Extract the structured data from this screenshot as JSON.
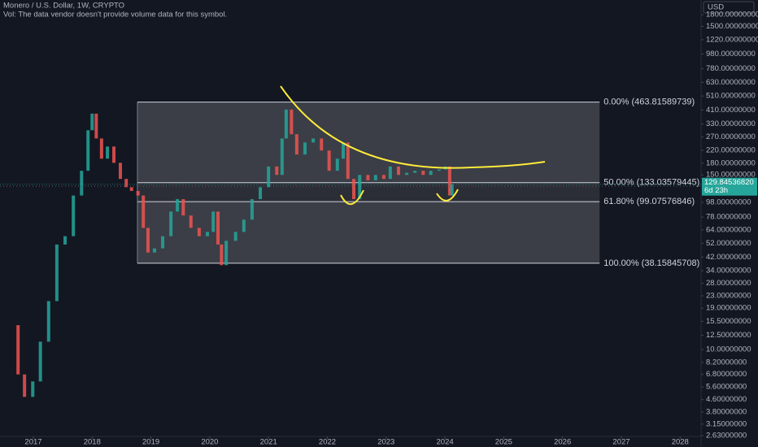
{
  "chart_data": {
    "type": "candlestick",
    "title": "Monero / U.S. Dollar, 1W, CRYPTO",
    "subtitle": "Vol: The data vendor doesn't provide volume data for this symbol.",
    "currency": "USD",
    "log_scale": true,
    "up_color": "#26a69a",
    "down_color": "#ef5350",
    "x": [
      2016.64,
      2016.74,
      2016.85,
      2016.99,
      2017.12,
      2017.26,
      2017.4,
      2017.54,
      2017.68,
      2017.82,
      2017.93,
      2018.0,
      2018.07,
      2018.16,
      2018.26,
      2018.37,
      2018.48,
      2018.58,
      2018.67,
      2018.78,
      2018.87,
      2018.95,
      2019.06,
      2019.2,
      2019.34,
      2019.45,
      2019.55,
      2019.68,
      2019.82,
      2019.96,
      2020.06,
      2020.14,
      2020.2,
      2020.28,
      2020.44,
      2020.58,
      2020.72,
      2020.86,
      2021.0,
      2021.14,
      2021.23,
      2021.3,
      2021.39,
      2021.48,
      2021.62,
      2021.76,
      2021.9,
      2022.03,
      2022.17,
      2022.27,
      2022.35,
      2022.45,
      2022.55,
      2022.69,
      2022.82,
      2022.96,
      2023.07,
      2023.21,
      2023.35,
      2023.49,
      2023.63,
      2023.76,
      2023.9,
      2024.01,
      2024.08,
      2024.12
    ],
    "values": [
      14.6,
      6.8,
      4.8,
      6.1,
      11.3,
      21.2,
      51,
      58,
      109,
      160,
      300,
      388,
      264,
      193,
      233,
      181,
      141,
      124,
      117,
      109,
      66,
      45,
      48,
      58,
      85,
      103,
      80,
      66,
      58,
      62,
      85,
      51,
      37,
      54,
      62,
      75,
      103,
      124,
      171,
      150,
      264,
      413,
      282,
      206,
      248,
      264,
      219,
      160,
      193,
      248,
      141,
      103,
      150,
      138,
      150,
      141,
      171,
      150,
      155,
      160,
      150,
      160,
      163,
      171,
      109,
      129.8
    ],
    "last_price": {
      "value": 129.8453682,
      "label": "129.84536820"
    },
    "countdown": "6d 23h",
    "xlim": [
      2016.433,
      2028.356
    ],
    "xticks": [
      2017,
      2018,
      2019,
      2020,
      2021,
      2022,
      2023,
      2024,
      2025,
      2026,
      2027,
      2028
    ],
    "ylim": [
      2.6,
      2260
    ],
    "yticks": [
      {
        "value": 1800,
        "label": "1800.00000000"
      },
      {
        "value": 1500,
        "label": "1500.00000000"
      },
      {
        "value": 1220,
        "label": "1220.00000000"
      },
      {
        "value": 980,
        "label": "980.00000000"
      },
      {
        "value": 780,
        "label": "780.00000000"
      },
      {
        "value": 630,
        "label": "630.00000000"
      },
      {
        "value": 510,
        "label": "510.00000000"
      },
      {
        "value": 410,
        "label": "410.00000000"
      },
      {
        "value": 330,
        "label": "330.00000000"
      },
      {
        "value": 270,
        "label": "270.00000000"
      },
      {
        "value": 220,
        "label": "220.00000000"
      },
      {
        "value": 180,
        "label": "180.00000000"
      },
      {
        "value": 150,
        "label": "150.00000000"
      },
      {
        "value": 98,
        "label": "98.00000000"
      },
      {
        "value": 78,
        "label": "78.00000000"
      },
      {
        "value": 64,
        "label": "64.00000000"
      },
      {
        "value": 52,
        "label": "52.00000000"
      },
      {
        "value": 42,
        "label": "42.00000000"
      },
      {
        "value": 34,
        "label": "34.00000000"
      },
      {
        "value": 28,
        "label": "28.00000000"
      },
      {
        "value": 23,
        "label": "23.00000000"
      },
      {
        "value": 19,
        "label": "19.00000000"
      },
      {
        "value": 15.5,
        "label": "15.50000000"
      },
      {
        "value": 12.5,
        "label": "12.50000000"
      },
      {
        "value": 10,
        "label": "10.00000000"
      },
      {
        "value": 8.2,
        "label": "8.20000000"
      },
      {
        "value": 6.8,
        "label": "6.80000000"
      },
      {
        "value": 5.6,
        "label": "5.60000000"
      },
      {
        "value": 4.6,
        "label": "4.60000000"
      },
      {
        "value": 3.8,
        "label": "3.80000000"
      },
      {
        "value": 3.15,
        "label": "3.15000000"
      },
      {
        "value": 2.63,
        "label": "2.63000000"
      }
    ],
    "fib_start": 2018.77,
    "fib_end": 2026.63,
    "fib_levels": [
      {
        "value": 463.81589739,
        "label": "0.00% (463.81589739)"
      },
      {
        "value": 133.03579445,
        "label": "50.00% (133.03579445)"
      },
      {
        "value": 99.07576846,
        "label": "61.80% (99.07576846)"
      },
      {
        "value": 38.15845708,
        "label": "100.00% (38.15845708)"
      }
    ]
  }
}
